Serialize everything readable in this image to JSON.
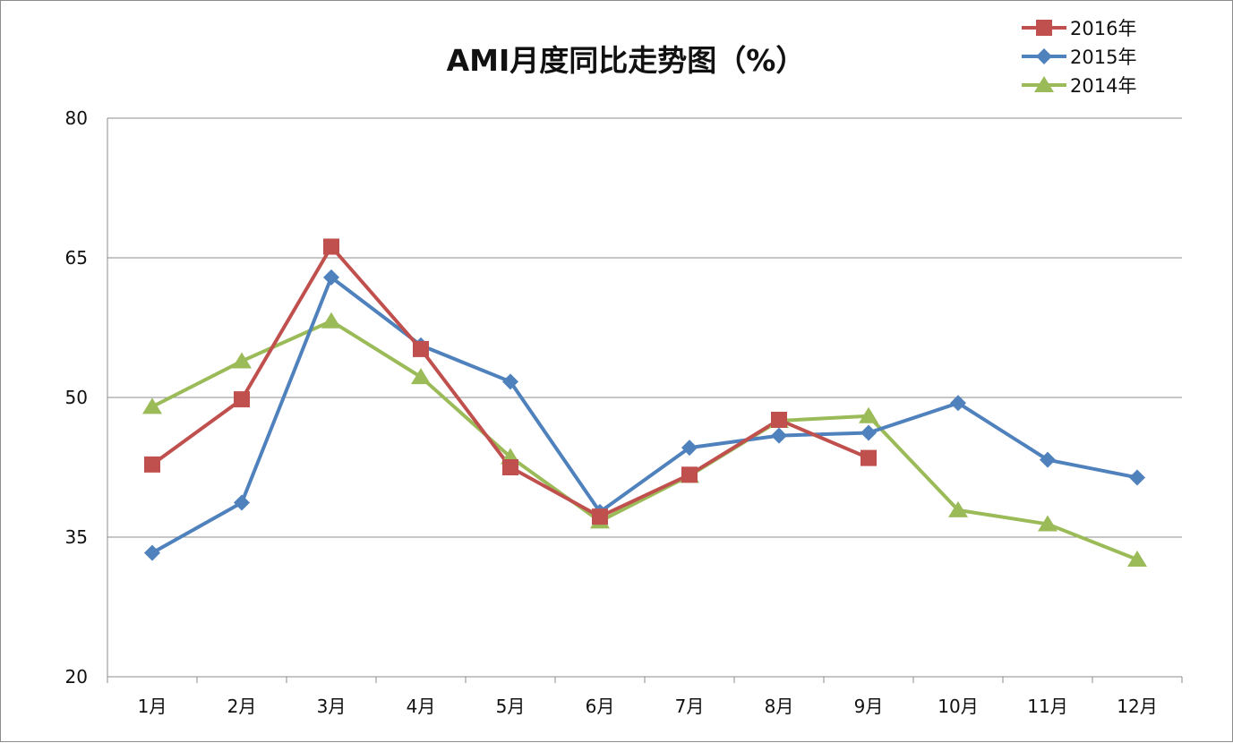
{
  "chart_data": {
    "type": "line",
    "title": "AMI月度同比走势图（%）",
    "xlabel": "",
    "ylabel": "",
    "categories": [
      "1月",
      "2月",
      "3月",
      "4月",
      "5月",
      "6月",
      "7月",
      "8月",
      "9月",
      "10月",
      "11月",
      "12月"
    ],
    "ylim": [
      20,
      80
    ],
    "yticks": [
      20,
      35,
      50,
      65,
      80
    ],
    "grid": true,
    "legend_position": "top-right",
    "series": [
      {
        "name": "2016年",
        "color": "#c0504d",
        "marker": "square",
        "values": [
          42.8,
          49.8,
          66.2,
          55.2,
          42.5,
          37.2,
          41.7,
          47.6,
          43.5,
          null,
          null,
          null
        ]
      },
      {
        "name": "2015年",
        "color": "#4f81bd",
        "marker": "diamond",
        "values": [
          33.3,
          38.7,
          62.9,
          55.6,
          51.7,
          37.7,
          44.6,
          45.9,
          46.2,
          49.4,
          43.3,
          41.4
        ]
      },
      {
        "name": "2014年",
        "color": "#9bbb59",
        "marker": "triangle",
        "values": [
          49.0,
          53.9,
          58.2,
          52.2,
          43.6,
          36.7,
          41.6,
          47.5,
          48.0,
          37.9,
          36.4,
          32.6
        ]
      }
    ]
  }
}
